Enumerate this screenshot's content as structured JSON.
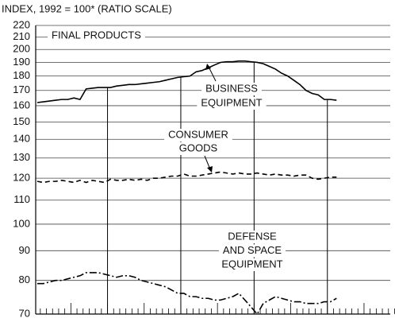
{
  "chart_data": {
    "type": "line",
    "title": "INDEX, 1992 = 100* (RATIO SCALE)",
    "log_scale": true,
    "grid": true,
    "ylim": [
      70,
      220
    ],
    "yticks": [
      70,
      80,
      90,
      100,
      110,
      120,
      130,
      140,
      150,
      160,
      170,
      180,
      190,
      200,
      210,
      220
    ],
    "categories": [
      null,
      null,
      null,
      null,
      null,
      null,
      null,
      null,
      null,
      null,
      null,
      null,
      null,
      null,
      null,
      null,
      null,
      null,
      null,
      null,
      null,
      null,
      null,
      null,
      null,
      null,
      null,
      null,
      null,
      null,
      null,
      null,
      null,
      null,
      null,
      null,
      null,
      null,
      null,
      null,
      null,
      null,
      null,
      null,
      null,
      null,
      null,
      null,
      null,
      null,
      null,
      null,
      null,
      null,
      null,
      null,
      null,
      null,
      null
    ],
    "annotations": [
      {
        "lines": [
          "FINAL PRODUCTS"
        ]
      },
      {
        "lines": [
          "BUSINESS",
          "EQUIPMENT"
        ]
      },
      {
        "lines": [
          "CONSUMER",
          "GOODS"
        ]
      },
      {
        "lines": [
          "DEFENSE",
          "AND SPACE",
          "EQUIPMENT"
        ]
      }
    ],
    "series": [
      {
        "name": "BUSINESS EQUIPMENT",
        "color": "#000",
        "dash": "solid",
        "values": [
          162,
          162.5,
          163,
          163.5,
          164,
          164,
          165,
          164,
          171,
          171.5,
          172,
          172,
          172,
          173,
          173.5,
          174,
          174,
          174.5,
          175,
          175.5,
          176,
          177,
          178,
          179,
          179.5,
          180,
          183,
          184,
          186,
          188,
          190,
          190.5,
          190.5,
          191,
          191,
          190.5,
          190,
          189,
          187,
          185,
          182,
          180,
          177,
          174,
          170,
          168,
          167,
          164,
          164,
          163.5,
          null,
          null,
          null,
          null,
          null,
          null,
          null,
          null,
          null
        ]
      },
      {
        "name": "CONSUMER GOODS",
        "color": "#000",
        "dash": "dashed",
        "values": [
          118.5,
          118,
          118.5,
          118.5,
          119,
          118.5,
          118,
          119,
          118,
          119,
          118.5,
          118,
          119.5,
          119,
          119,
          119.5,
          119,
          119.5,
          119,
          120,
          120,
          120.5,
          121,
          121,
          122,
          121,
          121,
          121.5,
          122,
          122.5,
          123,
          122.5,
          122,
          122.5,
          122,
          122,
          122.5,
          122,
          121.5,
          122,
          121.5,
          121.5,
          121,
          121.5,
          121.5,
          120,
          119.5,
          120,
          120.5,
          120.5,
          null,
          null,
          null,
          null,
          null,
          null,
          null,
          null,
          null
        ]
      },
      {
        "name": "DEFENSE AND SPACE EQUIPMENT",
        "color": "#000",
        "dash": "dashdot",
        "values": [
          79,
          79,
          79.5,
          80,
          80,
          80.5,
          81,
          81.5,
          82.5,
          82.5,
          82.5,
          82,
          81.5,
          81,
          81.5,
          81.5,
          81,
          80,
          79.5,
          79,
          78.5,
          78,
          77,
          76,
          76,
          75,
          75,
          74.5,
          74.5,
          74,
          74,
          74.5,
          75,
          76,
          74,
          72,
          70,
          73,
          74,
          75,
          74.5,
          74,
          73.5,
          73.5,
          73,
          73,
          73,
          73.5,
          73.5,
          74.5,
          null,
          null,
          null,
          null,
          null,
          null,
          null,
          null,
          null
        ]
      }
    ]
  }
}
